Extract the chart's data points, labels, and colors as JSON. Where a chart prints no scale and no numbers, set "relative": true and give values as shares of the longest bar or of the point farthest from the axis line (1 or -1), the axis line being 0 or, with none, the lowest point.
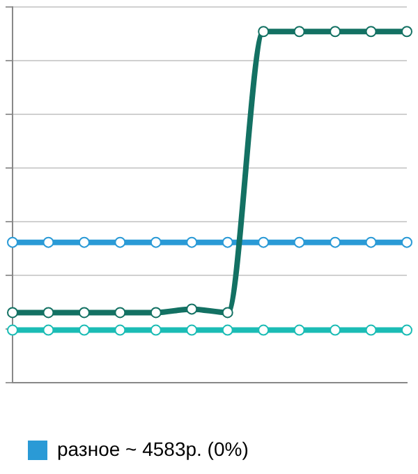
{
  "chart_data": {
    "type": "line",
    "relative": true,
    "categories": [
      null,
      null,
      null,
      null,
      null,
      null,
      null,
      null,
      null,
      null,
      null,
      null
    ],
    "series": [
      {
        "color": "#137163",
        "values": [
          0.2,
          0.2,
          0.2,
          0.2,
          0.2,
          0.21,
          0.2,
          1,
          1,
          1,
          1,
          1
        ]
      },
      {
        "name": "разное ~ 4583р. (0%)",
        "color": "#2a9ad6",
        "values": [
          0.4,
          0.4,
          0.4,
          0.4,
          0.4,
          0.4,
          0.4,
          0.4,
          0.4,
          0.4,
          0.4,
          0.4
        ]
      },
      {
        "color": "#1bbcb5",
        "values": [
          0.15,
          0.15,
          0.15,
          0.15,
          0.15,
          0.15,
          0.15,
          0.15,
          0.15,
          0.15,
          0.15,
          0.15
        ]
      }
    ],
    "grid": "y",
    "legend": "bottom",
    "marker": "circle",
    "line_style": "solid"
  }
}
